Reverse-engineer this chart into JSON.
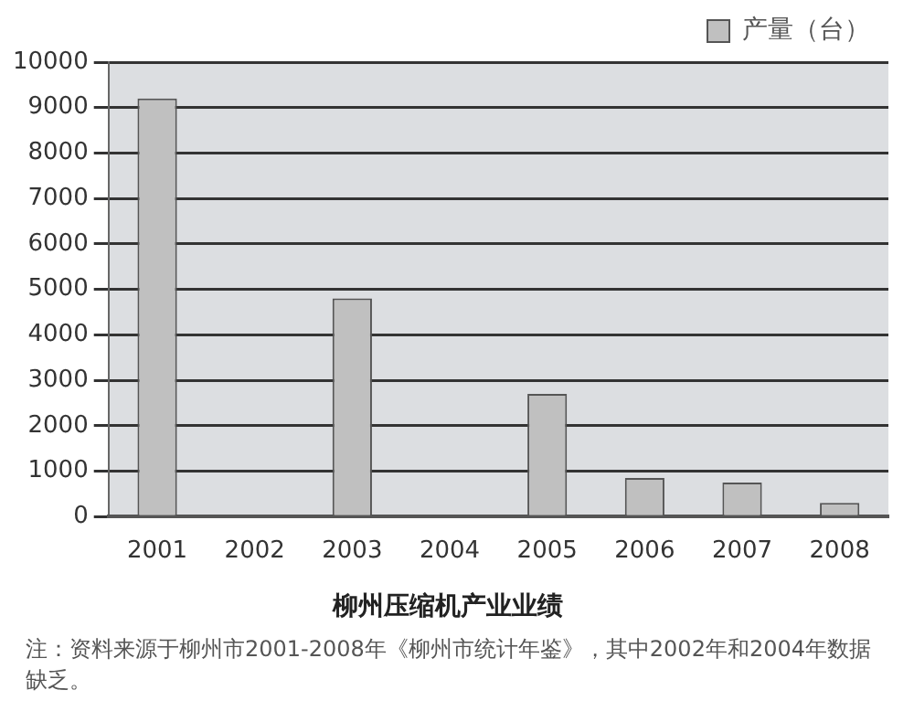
{
  "chart_data": {
    "type": "bar",
    "title": "柳州压缩机产业业绩",
    "categories": [
      "2001",
      "2002",
      "2003",
      "2004",
      "2005",
      "2006",
      "2007",
      "2008"
    ],
    "series": [
      {
        "name": "产量（台）",
        "color": "#c0c0c0",
        "values": [
          9200,
          null,
          4800,
          null,
          2700,
          850,
          750,
          300
        ]
      }
    ],
    "ylim": [
      0,
      10000
    ],
    "yticks": [
      0,
      1000,
      2000,
      3000,
      4000,
      5000,
      6000,
      7000,
      8000,
      9000,
      10000
    ],
    "grid": "y",
    "legend": "top right",
    "annotations": [
      "注：资料来源于柳州市2001-2008年《柳州市统计年鉴》，其中2002年和2004年数据缺乏。"
    ]
  }
}
